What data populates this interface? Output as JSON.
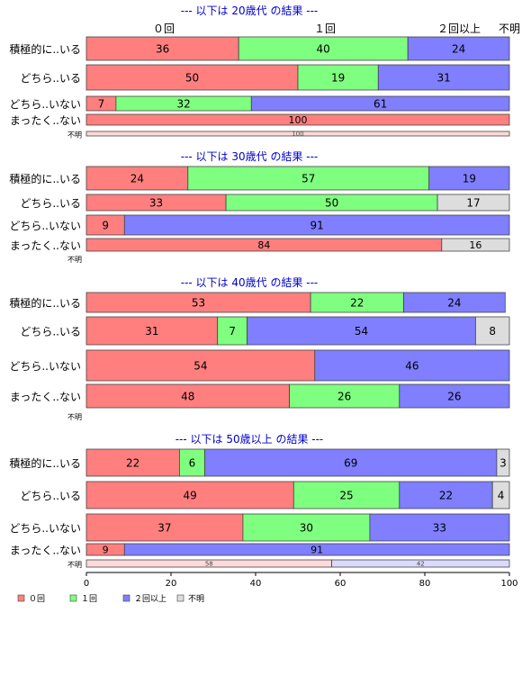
{
  "chart_data": {
    "type": "bar",
    "orientation": "horizontal",
    "stacked": "percent",
    "column_headers": [
      "０回",
      "１回",
      "２回以上",
      "不明"
    ],
    "legend": {
      "placement": "bottom-left",
      "entries": [
        {
          "label": "０回",
          "color": "#ff7f7f"
        },
        {
          "label": "１回",
          "color": "#7fff7f"
        },
        {
          "label": "２回以上",
          "color": "#7f7fff"
        },
        {
          "label": "不明",
          "color": "#dddddd"
        }
      ]
    },
    "xlim": [
      0,
      100
    ],
    "xticks": [
      "0",
      "20",
      "40",
      "60",
      "80",
      "100"
    ],
    "colors": {
      "series": [
        "#ff7f7f",
        "#7fff7f",
        "#7f7fff",
        "#dddddd"
      ],
      "title": "#0000cc"
    },
    "groups": [
      {
        "title": "--- 以下は 20歳代 の結果 ---",
        "rows": [
          {
            "label": "積極的に..いる",
            "values": [
              36,
              40,
              24,
              0
            ]
          },
          {
            "label": "どちら..いる",
            "values": [
              50,
              19,
              31,
              0
            ]
          },
          {
            "label": "どちら..いない",
            "values": [
              7,
              32,
              61,
              0
            ]
          },
          {
            "label": "まったく..ない",
            "values": [
              100,
              0,
              0,
              0
            ]
          },
          {
            "label": "不明",
            "values": [
              100,
              0,
              0,
              0
            ]
          }
        ]
      },
      {
        "title": "--- 以下は 30歳代 の結果 ---",
        "rows": [
          {
            "label": "積極的に..いる",
            "values": [
              24,
              57,
              19,
              0
            ]
          },
          {
            "label": "どちら..いる",
            "values": [
              33,
              50,
              0,
              17
            ]
          },
          {
            "label": "どちら..いない",
            "values": [
              9,
              0,
              91,
              0
            ]
          },
          {
            "label": "まったく..ない",
            "values": [
              84,
              0,
              0,
              16
            ]
          },
          {
            "label": "不明",
            "values": [
              0,
              0,
              0,
              0
            ]
          }
        ]
      },
      {
        "title": "--- 以下は 40歳代 の結果 ---",
        "rows": [
          {
            "label": "積極的に..いる",
            "values": [
              53,
              22,
              24,
              0
            ]
          },
          {
            "label": "どちら..いる",
            "values": [
              31,
              7,
              54,
              8
            ]
          },
          {
            "label": "どちら..いない",
            "values": [
              54,
              0,
              46,
              0
            ]
          },
          {
            "label": "まったく..ない",
            "values": [
              48,
              26,
              26,
              0
            ]
          },
          {
            "label": "不明",
            "values": [
              0,
              0,
              0,
              0
            ]
          }
        ]
      },
      {
        "title": "--- 以下は 50歳以上 の結果 ---",
        "rows": [
          {
            "label": "積極的に..いる",
            "values": [
              22,
              6,
              69,
              3
            ]
          },
          {
            "label": "どちら..いる",
            "values": [
              49,
              25,
              22,
              4
            ]
          },
          {
            "label": "どちら..いない",
            "values": [
              37,
              30,
              33,
              0
            ]
          },
          {
            "label": "まったく..ない",
            "values": [
              9,
              0,
              91,
              0
            ]
          },
          {
            "label": "不明",
            "values": [
              58,
              0,
              42,
              0
            ]
          }
        ]
      }
    ]
  }
}
